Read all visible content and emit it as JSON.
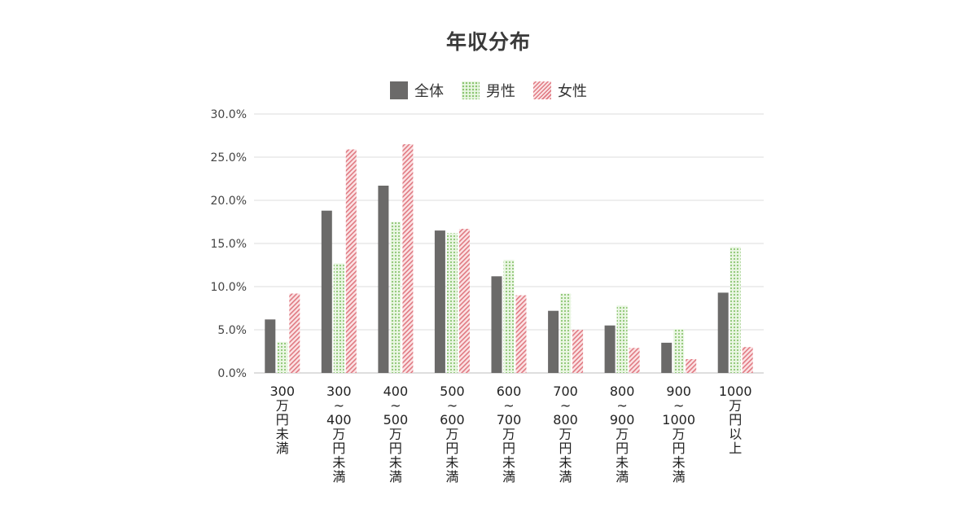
{
  "chart_data": {
    "type": "bar",
    "title": "年収分布",
    "legend_position": "top-center",
    "grid": true,
    "ylim": [
      0,
      30
    ],
    "yticks": [
      "0.0%",
      "5.0%",
      "10.0%",
      "15.0%",
      "20.0%",
      "25.0%",
      "30.0%"
    ],
    "categories": [
      "300\n万\n円\n未\n満",
      "300\n~\n400\n万\n円\n未\n満",
      "400\n~\n500\n万\n円\n未\n満",
      "500\n~\n600\n万\n円\n未\n満",
      "600\n~\n700\n万\n円\n未\n満",
      "700\n~\n800\n万\n円\n未\n満",
      "800\n~\n900\n万\n円\n未\n満",
      "900\n~\n1000\n万\n円\n未\n満",
      "1000\n万\n円\n以\n上"
    ],
    "series": [
      {
        "name": "全体",
        "color": "#6b6a69",
        "pattern": "solid",
        "values": [
          6.2,
          18.8,
          21.7,
          16.5,
          11.2,
          7.2,
          5.5,
          3.5,
          9.3
        ]
      },
      {
        "name": "男性",
        "color": "#9fd08a",
        "pattern": "dots",
        "values": [
          3.6,
          12.7,
          17.5,
          16.2,
          13.1,
          9.2,
          7.8,
          5.1,
          14.6
        ]
      },
      {
        "name": "女性",
        "color": "#e5868d",
        "pattern": "stripes",
        "values": [
          9.2,
          25.9,
          26.5,
          16.7,
          9.0,
          5.0,
          2.9,
          1.6,
          3.0
        ]
      }
    ]
  }
}
